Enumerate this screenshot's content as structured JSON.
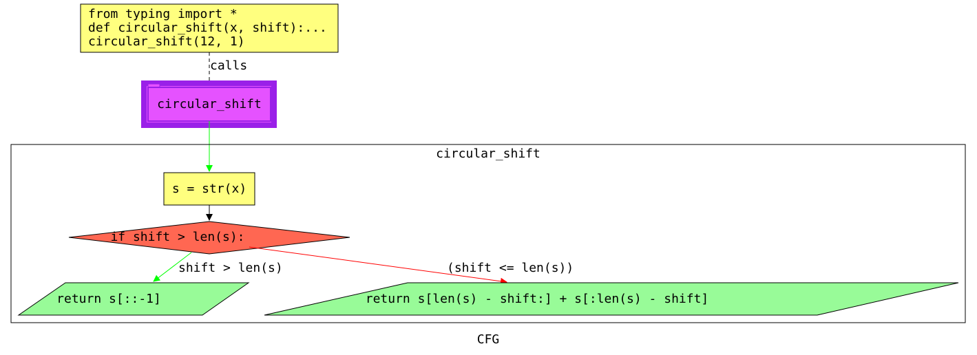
{
  "entry": {
    "lines": [
      "from typing import *",
      "def circular_shift(x, shift):...",
      "circular_shift(12, 1)"
    ],
    "fill": "#ffff7f"
  },
  "call_edge_label": "calls",
  "function_node": {
    "label": "circular_shift",
    "fill": "#e552ff",
    "border": "#9a20e8"
  },
  "cluster_title": "circular_shift",
  "assign_node": {
    "label": "s = str(x)",
    "fill": "#ffff7f"
  },
  "condition_node": {
    "label": "if shift > len(s):",
    "fill": "#ff6752"
  },
  "return_true": {
    "label": "return s[::-1]",
    "fill": "#98fb98"
  },
  "return_false": {
    "label": "return s[len(s) - shift:] + s[:len(s) - shift]",
    "fill": "#98fb98"
  },
  "edge_true_label": "shift > len(s)",
  "edge_false_label": "(shift <= len(s))",
  "edge_colors": {
    "call_flow": "#00ff00",
    "true_branch": "#00ff00",
    "false_branch": "#ff0000",
    "default": "#000000"
  },
  "caption": "CFG"
}
